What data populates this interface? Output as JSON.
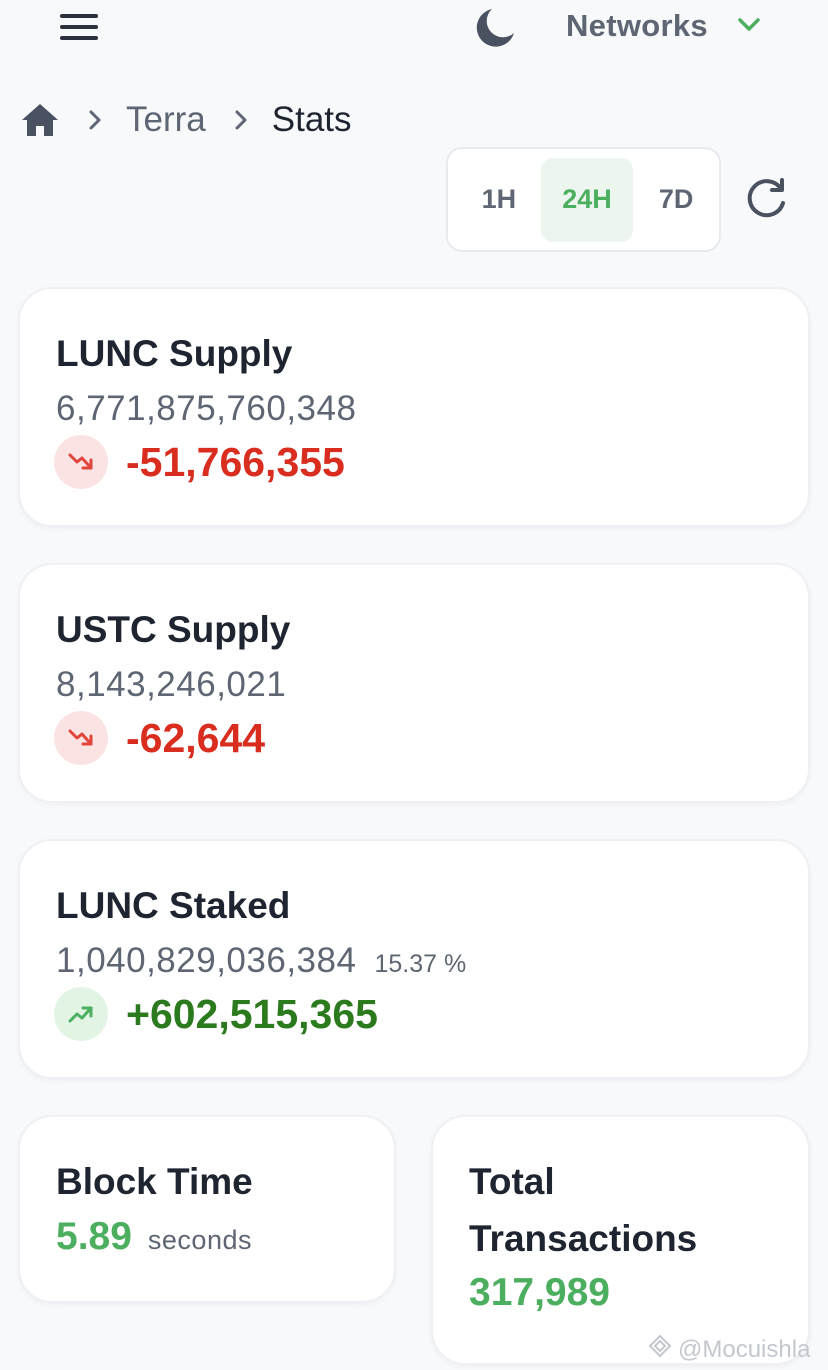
{
  "header": {
    "menu_icon": "menu-icon",
    "theme_icon": "moon-icon",
    "networks_label": "Networks",
    "networks_icon": "chevron-down-icon"
  },
  "breadcrumb": {
    "home_icon": "home-icon",
    "items": [
      "Terra",
      "Stats"
    ]
  },
  "timeframe": {
    "options": [
      "1H",
      "24H",
      "7D"
    ],
    "selected": "24H",
    "refresh_icon": "refresh-icon"
  },
  "cards": {
    "lunc_supply": {
      "title": "LUNC Supply",
      "value": "6,771,875,760,348",
      "change": "-51,766,355",
      "trend": "down"
    },
    "ustc_supply": {
      "title": "USTC Supply",
      "value": "8,143,246,021",
      "change": "-62,644",
      "trend": "down"
    },
    "lunc_staked": {
      "title": "LUNC Staked",
      "value": "1,040,829,036,384",
      "percent": "15.37 %",
      "change": "+602,515,365",
      "trend": "up"
    },
    "block_time": {
      "title": "Block Time",
      "value": "5.89",
      "unit": "seconds"
    },
    "total_transactions": {
      "title_line1": "Total",
      "title_line2": "Transactions",
      "value": "317,989"
    }
  },
  "watermark": "@Mocuishla",
  "colors": {
    "accent_green": "#4caf5f",
    "down_red": "#d92d20",
    "up_green": "#2c7a1e",
    "text_muted": "#5e6673",
    "text_dark": "#1f2530"
  }
}
